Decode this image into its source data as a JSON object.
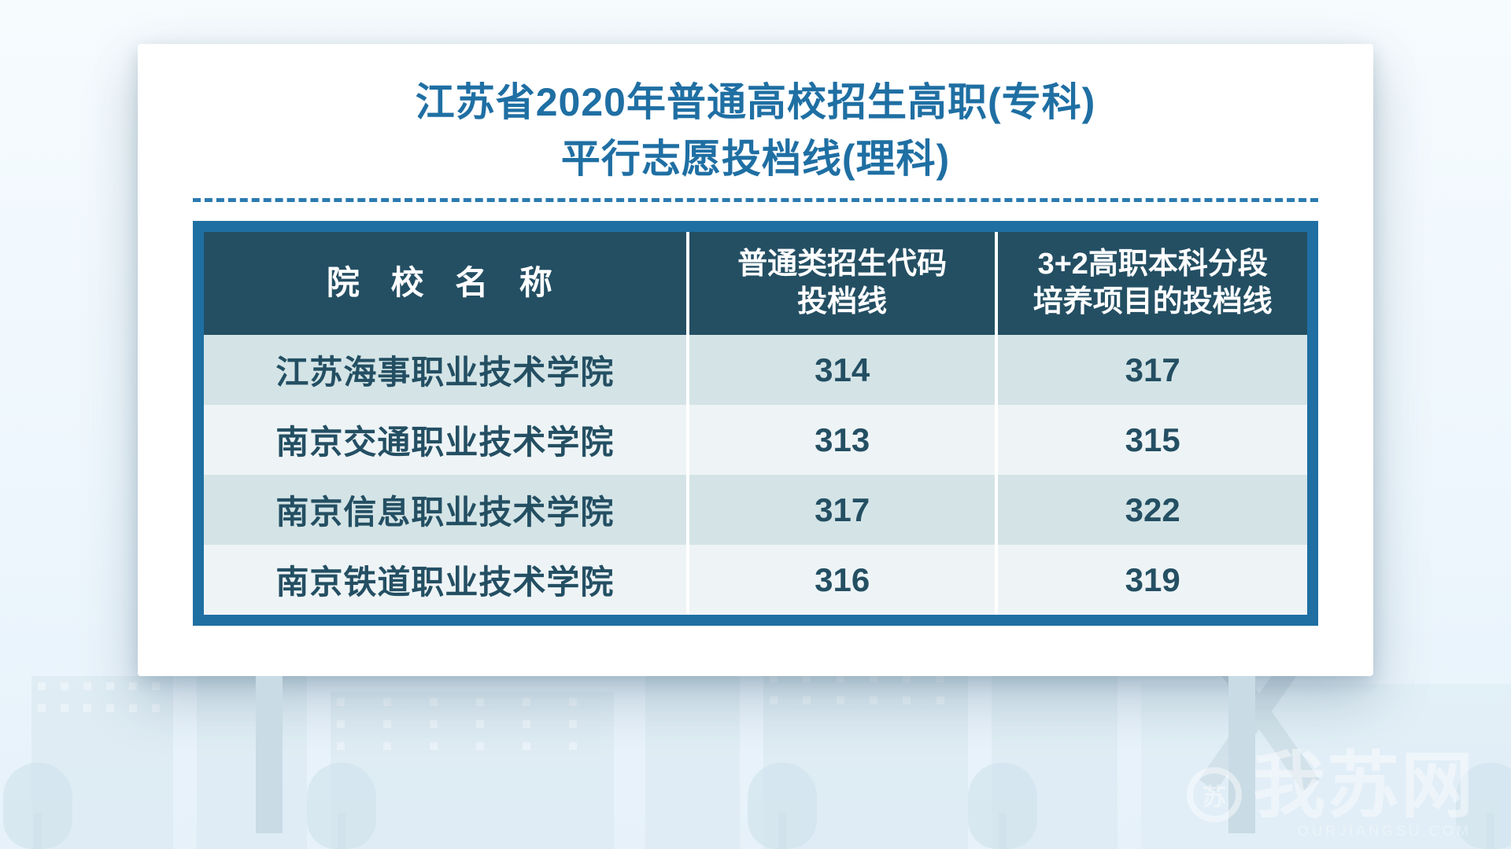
{
  "colors": {
    "title": "#1f6fa3",
    "dash": "#2b7bb0",
    "table_border": "#1f6fa3",
    "header_bg": "#244f63",
    "header_text": "#ffffff",
    "row_odd_bg": "#d4e4e6",
    "row_even_bg": "#eef4f6",
    "cell_text": "#244f63",
    "cell_name_text": "#244f63"
  },
  "title": {
    "line1": "江苏省2020年普通高校招生高职(专科)",
    "line2": "平行志愿投档线(理科)"
  },
  "table": {
    "col_widths_pct": [
      44,
      28,
      28
    ],
    "headers": [
      "院 校 名 称",
      "普通类招生代码\n投档线",
      "3+2高职本科分段\n培养项目的投档线"
    ],
    "rows": [
      {
        "name": "江苏海事职业技术学院",
        "normal": "314",
        "three_plus_two": "317"
      },
      {
        "name": "南京交通职业技术学院",
        "normal": "313",
        "three_plus_two": "315"
      },
      {
        "name": "南京信息职业技术学院",
        "normal": "317",
        "three_plus_two": "322"
      },
      {
        "name": "南京铁道职业技术学院",
        "normal": "316",
        "three_plus_two": "319"
      }
    ]
  },
  "watermark": {
    "text": "我苏网",
    "sub": "OURJIANGSU.COM",
    "logo_glyph": "苏"
  }
}
